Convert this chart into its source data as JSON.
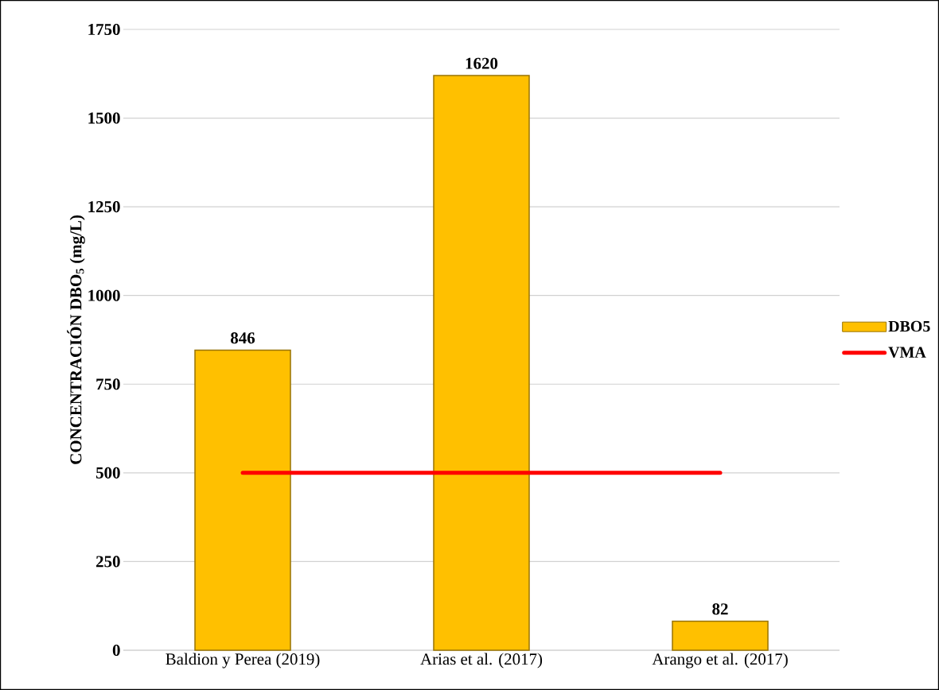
{
  "chart_data": {
    "type": "bar",
    "ylabel": "CONCENTRACIÓN DBO$_{5}$ (mg/L)",
    "categories": [
      "Baldion y Perea (2019)",
      "Arias et al. (2017)",
      "Arango et al. (2017)"
    ],
    "series": [
      {
        "name": "DBO5",
        "color": "#ffc000",
        "values": [
          846,
          1620,
          82
        ],
        "value_labels": [
          "846",
          "1620",
          "82"
        ]
      },
      {
        "name": "VMA",
        "type": "line",
        "color": "#ff0000",
        "values": [
          500,
          500,
          500
        ]
      }
    ],
    "ylim": [
      0,
      1750
    ],
    "yticks": [
      0,
      250,
      500,
      750,
      1000,
      1250,
      1500,
      1750
    ],
    "grid": "y",
    "legend": "right"
  }
}
